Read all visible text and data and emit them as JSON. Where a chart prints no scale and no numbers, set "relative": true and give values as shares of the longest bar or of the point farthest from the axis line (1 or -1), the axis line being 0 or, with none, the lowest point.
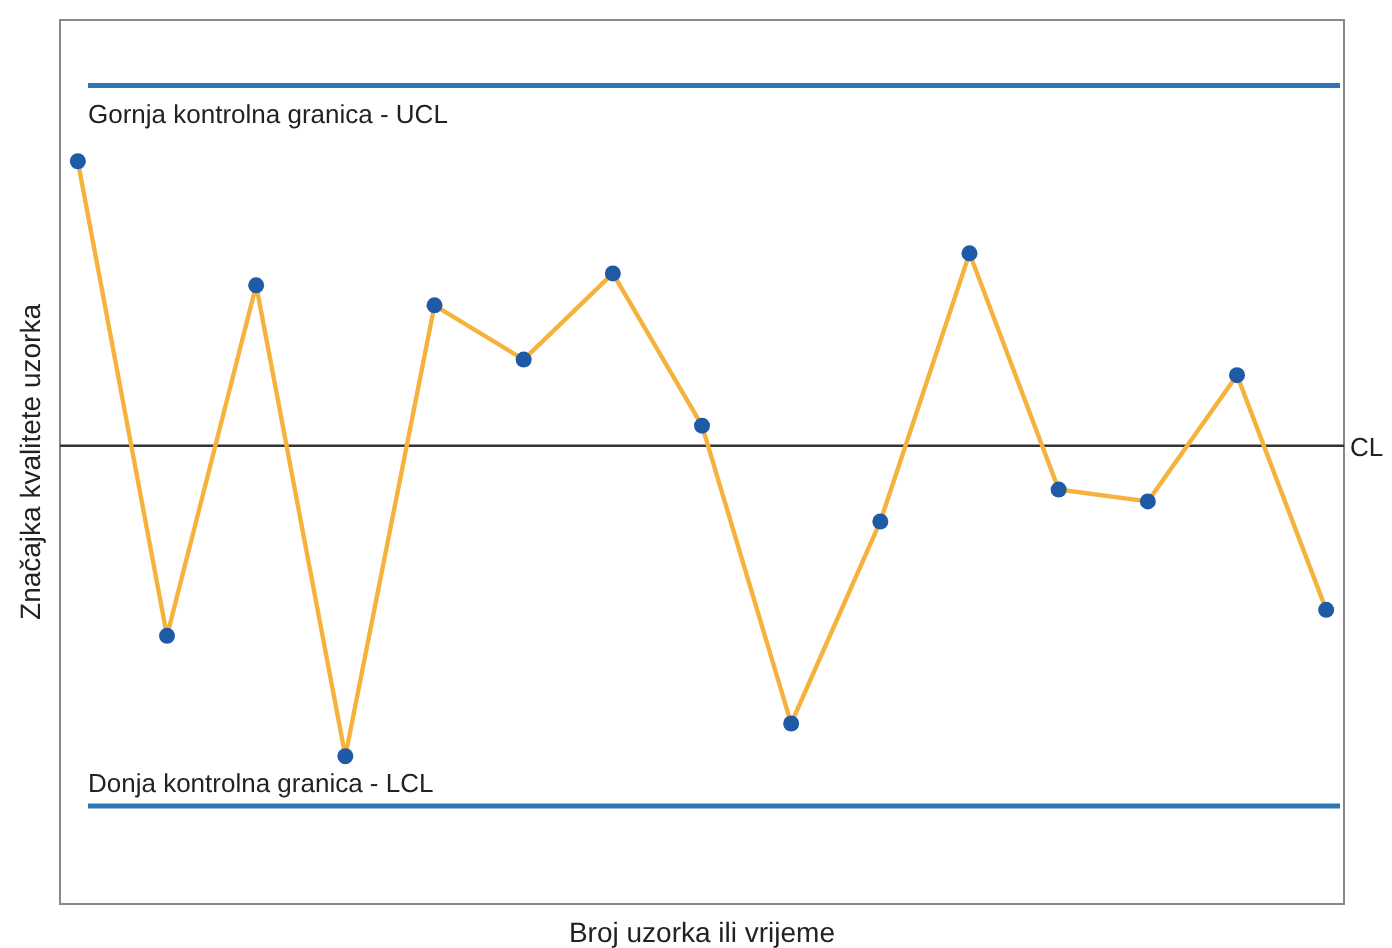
{
  "chart_data": {
    "type": "line",
    "relative": true,
    "xlabel": "Broj uzorka ili vrijeme",
    "ylabel": "Značajka kvalitete uzorka",
    "categories": [
      null,
      null,
      null,
      null,
      null,
      null,
      null,
      null,
      null,
      null,
      null,
      null,
      null,
      null,
      null
    ],
    "series": [
      {
        "color": "#f5b23d",
        "colors": [
          "#1f5aa6",
          "#1f5aa6",
          "#1f5aa6",
          "#1f5aa6",
          "#1f5aa6",
          "#1f5aa6",
          "#1f5aa6",
          "#1f5aa6",
          "#1f5aa6",
          "#1f5aa6",
          "#1f5aa6",
          "#1f5aa6",
          "#1f5aa6",
          "#1f5aa6",
          "#1f5aa6"
        ],
        "values": [
          1.0,
          0.361,
          0.833,
          0.199,
          0.806,
          0.733,
          0.849,
          0.644,
          0.243,
          0.515,
          0.876,
          0.558,
          0.542,
          0.712,
          0.396
        ]
      }
    ],
    "marker": "circle",
    "line_style": "solid",
    "ref_lines": [
      {
        "axis": "y",
        "value": 1.102,
        "label": "Gornja kontrolna granica - UCL",
        "color": "#2e75b6"
      },
      {
        "axis": "y",
        "value": 0.617,
        "label": "CL",
        "color": "#333333"
      },
      {
        "axis": "y",
        "value": 0.132,
        "label": "Donja kontrolna granica - LCL",
        "color": "#2e75b6"
      }
    ]
  }
}
